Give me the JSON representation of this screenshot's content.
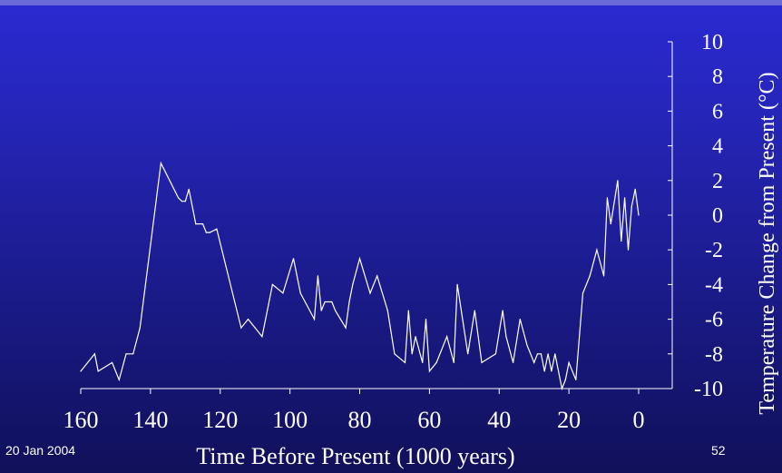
{
  "footer": {
    "date": "20 Jan 2004",
    "page": "52"
  },
  "colors": {
    "background": "#1e1ea0",
    "line": "#ffffff",
    "text": "#ffffff"
  },
  "chart_data": {
    "type": "line",
    "title": "",
    "xlabel": "Time Before Present (1000 years)",
    "ylabel": "Temperature Change from Present (°C)",
    "xlim": [
      160,
      0
    ],
    "ylim": [
      -10,
      10
    ],
    "x_ticks": [
      160,
      140,
      120,
      100,
      80,
      60,
      40,
      20,
      0
    ],
    "y_ticks": [
      -10,
      -8,
      -6,
      -4,
      -2,
      0,
      2,
      4,
      6,
      8,
      10
    ],
    "y_axis_side": "right",
    "grid": false,
    "series": [
      {
        "x": [
          160,
          156,
          155,
          151,
          149,
          147,
          145,
          143,
          137,
          132,
          131,
          130,
          129,
          127,
          125,
          124,
          123,
          121,
          114,
          112,
          110,
          108,
          105,
          102,
          99,
          97,
          93,
          92,
          91,
          90,
          88,
          87,
          84,
          83,
          82,
          80,
          77,
          75,
          72,
          70,
          67,
          66,
          65,
          64,
          62,
          61,
          60,
          58,
          55,
          53,
          52,
          49,
          47,
          45,
          41,
          39,
          38,
          36,
          34,
          32,
          30,
          29,
          28,
          27,
          26,
          25,
          24,
          23,
          22,
          21,
          20,
          18,
          16,
          14,
          12,
          10,
          9,
          8,
          6,
          5,
          4,
          3,
          2,
          1,
          0
        ],
        "values": [
          -9,
          -8,
          -9,
          -8.5,
          -9.5,
          -8,
          -8,
          -6.5,
          3,
          1,
          0.8,
          0.8,
          1.5,
          -0.5,
          -0.5,
          -1,
          -1,
          -0.8,
          -6.5,
          -6,
          -6.5,
          -7,
          -4,
          -4.5,
          -2.5,
          -4.5,
          -6,
          -3.5,
          -5.5,
          -5,
          -5,
          -5.5,
          -6.5,
          -5,
          -4,
          -2.5,
          -4.5,
          -3.5,
          -5.5,
          -8,
          -8.5,
          -5.5,
          -8,
          -7,
          -8.5,
          -6,
          -9,
          -8.5,
          -7,
          -8.5,
          -4,
          -8,
          -5.5,
          -8.5,
          -8,
          -5.5,
          -7,
          -8.5,
          -6,
          -7.5,
          -8.5,
          -8,
          -8,
          -9,
          -8,
          -9,
          -8,
          -9,
          -10,
          -9.5,
          -8.5,
          -9.5,
          -4.5,
          -3.5,
          -2,
          -3.5,
          1,
          -0.5,
          2,
          -1.5,
          1,
          -2,
          0.5,
          1.5,
          0
        ]
      }
    ]
  }
}
